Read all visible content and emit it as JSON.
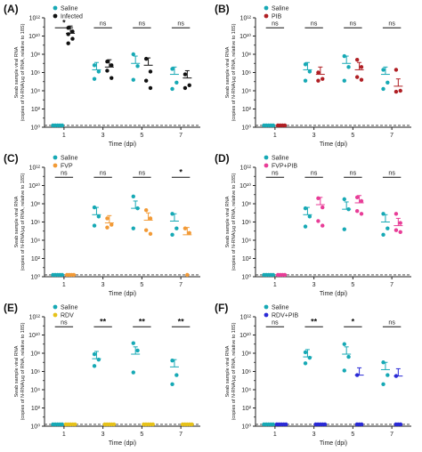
{
  "figure": {
    "colors": {
      "saline": "#17a9b5",
      "infected": "#111111",
      "pib": "#b01f24",
      "fvp": "#f29a36",
      "fvp_pib": "#e83d97",
      "rdv": "#e6c21a",
      "rdv_pib": "#2a2ad6",
      "axis": "#222222"
    }
  },
  "chart_data": [
    {
      "panel_label": "(A)",
      "type": "scatter",
      "x_categories": [
        "1",
        "3",
        "5",
        "7"
      ],
      "xlabel": "Time (dpi)",
      "ylabel_line1": "Swab sample viral RNA",
      "ylabel_line2": "(copies of N-RNA/µg of RNA, relative to 18S)",
      "y_scale": "log10",
      "y_ticks": [
        "10⁰",
        "10²",
        "10⁴",
        "10⁶",
        "10⁸",
        "10¹⁰",
        "10¹²"
      ],
      "ylim": [
        0,
        12
      ],
      "dashed_line_y": 0.2,
      "significance": [
        "*",
        "ns",
        "ns",
        "ns"
      ],
      "legend_position": "top-left",
      "series": [
        {
          "name": "Saline",
          "color_key": "saline",
          "points": [
            [
              0,
              0.2
            ],
            [
              0,
              0.2
            ],
            [
              0,
              0.2
            ],
            [
              0,
              0.2
            ],
            [
              0,
              0.2
            ],
            [
              1,
              6.8
            ],
            [
              1,
              6.1
            ],
            [
              1,
              5.3
            ],
            [
              2,
              8.0
            ],
            [
              2,
              6.7
            ],
            [
              2,
              5.2
            ],
            [
              3,
              6.4
            ],
            [
              3,
              4.9
            ],
            [
              3,
              4.2
            ]
          ],
          "means": [
            0.2,
            6.3,
            7.0,
            5.8
          ]
        },
        {
          "name": "Infected",
          "color_key": "infected",
          "points": [
            [
              0,
              10.9
            ],
            [
              0,
              10.5
            ],
            [
              0,
              10.2
            ],
            [
              0,
              9.7
            ],
            [
              0,
              9.2
            ],
            [
              1,
              7.2
            ],
            [
              1,
              6.8
            ],
            [
              1,
              6.2
            ],
            [
              1,
              5.4
            ],
            [
              2,
              7.5
            ],
            [
              2,
              6.1
            ],
            [
              2,
              5.1
            ],
            [
              2,
              4.3
            ],
            [
              3,
              5.8
            ],
            [
              3,
              4.6
            ],
            [
              3,
              4.3
            ]
          ],
          "means": [
            10.3,
            6.6,
            6.8,
            5.4
          ]
        }
      ]
    },
    {
      "panel_label": "(B)",
      "type": "scatter",
      "x_categories": [
        "1",
        "3",
        "5",
        "7"
      ],
      "xlabel": "Time (dpi)",
      "ylabel_line1": "Swab sample viral RNA",
      "ylabel_line2": "(copies of N-RNA/µg of RNA, relative to 18S)",
      "y_scale": "log10",
      "y_ticks": [
        "10⁰",
        "10²",
        "10⁴",
        "10⁶",
        "10⁸",
        "10¹⁰",
        "10¹²"
      ],
      "ylim": [
        0,
        12
      ],
      "dashed_line_y": 0.2,
      "significance": [
        "ns",
        "ns",
        "ns",
        "ns"
      ],
      "legend_position": "top-left",
      "series": [
        {
          "name": "Saline",
          "color_key": "saline",
          "points": [
            [
              0,
              0.2
            ],
            [
              0,
              0.2
            ],
            [
              0,
              0.2
            ],
            [
              0,
              0.2
            ],
            [
              0,
              0.2
            ],
            [
              1,
              6.9
            ],
            [
              1,
              6.1
            ],
            [
              1,
              5.1
            ],
            [
              2,
              7.8
            ],
            [
              2,
              6.6
            ],
            [
              2,
              5.1
            ],
            [
              3,
              6.3
            ],
            [
              3,
              4.9
            ],
            [
              3,
              4.2
            ]
          ],
          "means": [
            0.2,
            6.3,
            7.0,
            5.8
          ]
        },
        {
          "name": "PIB",
          "color_key": "pib",
          "points": [
            [
              0,
              0.2
            ],
            [
              0,
              0.2
            ],
            [
              0,
              0.2
            ],
            [
              0,
              0.2
            ],
            [
              1,
              6.0
            ],
            [
              1,
              5.3
            ],
            [
              1,
              5.1
            ],
            [
              2,
              7.4
            ],
            [
              2,
              6.6
            ],
            [
              2,
              5.5
            ],
            [
              2,
              5.2
            ],
            [
              3,
              6.3
            ],
            [
              3,
              4.0
            ],
            [
              3,
              3.9
            ]
          ],
          "means": [
            0.2,
            5.8,
            6.3,
            4.5
          ]
        }
      ]
    },
    {
      "panel_label": "(C)",
      "type": "scatter",
      "x_categories": [
        "1",
        "3",
        "5",
        "7"
      ],
      "xlabel": "Time (dpi)",
      "ylabel_line1": "Swab sample viral RNA",
      "ylabel_line2": "(copies of N-RNA/µg of RNA, relative to 18S)",
      "y_scale": "log10",
      "y_ticks": [
        "10⁰",
        "10²",
        "10⁴",
        "10⁶",
        "10⁸",
        "10¹⁰",
        "10¹²"
      ],
      "ylim": [
        0,
        12
      ],
      "dashed_line_y": 0.2,
      "significance": [
        "ns",
        "ns",
        "ns",
        "*"
      ],
      "legend_position": "top-left",
      "series": [
        {
          "name": "Saline",
          "color_key": "saline",
          "points": [
            [
              0,
              0.2
            ],
            [
              0,
              0.2
            ],
            [
              0,
              0.2
            ],
            [
              0,
              0.2
            ],
            [
              0,
              0.2
            ],
            [
              1,
              7.6
            ],
            [
              1,
              6.6
            ],
            [
              1,
              5.6
            ],
            [
              2,
              8.8
            ],
            [
              2,
              7.5
            ],
            [
              2,
              5.3
            ],
            [
              3,
              6.9
            ],
            [
              3,
              5.3
            ],
            [
              3,
              4.6
            ]
          ],
          "means": [
            0.2,
            6.8,
            7.5,
            6.1
          ]
        },
        {
          "name": "FVP",
          "color_key": "fvp",
          "points": [
            [
              0,
              0.2
            ],
            [
              0,
              0.2
            ],
            [
              0,
              0.2
            ],
            [
              0,
              0.2
            ],
            [
              1,
              6.4
            ],
            [
              1,
              5.7
            ],
            [
              1,
              5.4
            ],
            [
              2,
              7.3
            ],
            [
              2,
              6.4
            ],
            [
              2,
              5.1
            ],
            [
              2,
              4.7
            ],
            [
              3,
              5.3
            ],
            [
              3,
              4.8
            ],
            [
              3,
              0.2
            ]
          ],
          "means": [
            0.2,
            5.9,
            6.2,
            4.6
          ]
        }
      ]
    },
    {
      "panel_label": "(D)",
      "type": "scatter",
      "x_categories": [
        "1",
        "3",
        "5",
        "7"
      ],
      "xlabel": "Time (dpi)",
      "ylabel_line1": "Swab sample viral RNA",
      "ylabel_line2": "(copies of N-RNA/µg of RNA, relative to 18S)",
      "y_scale": "log10",
      "y_ticks": [
        "10⁰",
        "10²",
        "10⁴",
        "10⁶",
        "10⁸",
        "10¹⁰",
        "10¹²"
      ],
      "ylim": [
        0,
        12
      ],
      "dashed_line_y": 0.2,
      "significance": [
        "ns",
        "ns",
        "ns",
        "ns"
      ],
      "legend_position": "top-left",
      "series": [
        {
          "name": "Saline",
          "color_key": "saline",
          "points": [
            [
              0,
              0.2
            ],
            [
              0,
              0.2
            ],
            [
              0,
              0.2
            ],
            [
              0,
              0.2
            ],
            [
              0,
              0.2
            ],
            [
              1,
              7.5
            ],
            [
              1,
              6.6
            ],
            [
              1,
              5.5
            ],
            [
              2,
              8.5
            ],
            [
              2,
              7.4
            ],
            [
              2,
              5.2
            ],
            [
              3,
              6.9
            ],
            [
              3,
              5.3
            ],
            [
              3,
              4.6
            ]
          ],
          "means": [
            0.2,
            6.8,
            7.4,
            6.0
          ]
        },
        {
          "name": "FVP+PIB",
          "color_key": "fvp_pib",
          "points": [
            [
              0,
              0.2
            ],
            [
              0,
              0.2
            ],
            [
              0,
              0.2
            ],
            [
              0,
              0.2
            ],
            [
              1,
              8.6
            ],
            [
              1,
              7.6
            ],
            [
              1,
              6.1
            ],
            [
              1,
              5.6
            ],
            [
              2,
              8.7
            ],
            [
              2,
              8.3
            ],
            [
              2,
              7.2
            ],
            [
              2,
              6.9
            ],
            [
              3,
              6.9
            ],
            [
              3,
              5.9
            ],
            [
              3,
              5.1
            ],
            [
              3,
              4.9
            ]
          ],
          "means": [
            0.2,
            7.9,
            8.1,
            5.6
          ]
        }
      ]
    },
    {
      "panel_label": "(E)",
      "type": "scatter",
      "x_categories": [
        "1",
        "3",
        "5",
        "7"
      ],
      "xlabel": "Time (dpi)",
      "ylabel_line1": "Swab sample viral RNA",
      "ylabel_line2": "(copies of N-RNA/µg of RNA, relative to 18S)",
      "y_scale": "log10",
      "y_ticks": [
        "10⁰",
        "10²",
        "10⁴",
        "10⁶",
        "10⁸",
        "10¹⁰",
        "10¹²"
      ],
      "ylim": [
        0,
        12
      ],
      "dashed_line_y": 0.2,
      "significance": [
        "ns",
        "**",
        "**",
        "**"
      ],
      "legend_position": "top-left",
      "series": [
        {
          "name": "Saline",
          "color_key": "saline",
          "points": [
            [
              0,
              0.2
            ],
            [
              0,
              0.2
            ],
            [
              0,
              0.2
            ],
            [
              0,
              0.2
            ],
            [
              0,
              0.2
            ],
            [
              1,
              7.9
            ],
            [
              1,
              7.3
            ],
            [
              1,
              6.6
            ],
            [
              2,
              9.1
            ],
            [
              2,
              8.3
            ],
            [
              2,
              5.9
            ],
            [
              3,
              7.2
            ],
            [
              3,
              5.6
            ],
            [
              3,
              4.6
            ]
          ],
          "means": [
            0.2,
            7.4,
            7.9,
            6.5
          ]
        },
        {
          "name": "RDV",
          "color_key": "rdv",
          "points": [
            [
              0,
              0.2
            ],
            [
              0,
              0.2
            ],
            [
              0,
              0.2
            ],
            [
              0,
              0.2
            ],
            [
              0,
              0.2
            ],
            [
              1,
              0.2
            ],
            [
              1,
              0.2
            ],
            [
              1,
              0.2
            ],
            [
              1,
              0.2
            ],
            [
              1,
              0.2
            ],
            [
              2,
              0.2
            ],
            [
              2,
              0.2
            ],
            [
              2,
              0.2
            ],
            [
              2,
              0.2
            ],
            [
              2,
              0.2
            ],
            [
              3,
              0.2
            ],
            [
              3,
              0.2
            ],
            [
              3,
              0.2
            ],
            [
              3,
              0.2
            ],
            [
              3,
              0.2
            ]
          ],
          "means": [
            0.2,
            0.2,
            0.2,
            0.2
          ]
        }
      ]
    },
    {
      "panel_label": "(F)",
      "type": "scatter",
      "x_categories": [
        "1",
        "3",
        "5",
        "7"
      ],
      "xlabel": "Time (dpi)",
      "ylabel_line1": "Swab sample viral RNA",
      "ylabel_line2": "(copies of N-RNA/µg of RNA, relative to 18S)",
      "y_scale": "log10",
      "y_ticks": [
        "10⁰",
        "10²",
        "10⁴",
        "10⁶",
        "10⁸",
        "10¹⁰",
        "10¹²"
      ],
      "ylim": [
        0,
        12
      ],
      "dashed_line_y": 0.2,
      "significance": [
        "ns",
        "**",
        "*",
        "ns"
      ],
      "legend_position": "top-left",
      "series": [
        {
          "name": "Saline",
          "color_key": "saline",
          "points": [
            [
              0,
              0.2
            ],
            [
              0,
              0.2
            ],
            [
              0,
              0.2
            ],
            [
              0,
              0.2
            ],
            [
              0,
              0.2
            ],
            [
              1,
              8.1
            ],
            [
              1,
              7.5
            ],
            [
              1,
              6.9
            ],
            [
              2,
              9.0
            ],
            [
              2,
              7.6
            ],
            [
              2,
              6.1
            ],
            [
              3,
              7.0
            ],
            [
              3,
              5.6
            ],
            [
              3,
              4.6
            ]
          ],
          "means": [
            0.2,
            7.6,
            7.9,
            6.2
          ]
        },
        {
          "name": "RDV+PIB",
          "color_key": "rdv_pib",
          "points": [
            [
              0,
              0.2
            ],
            [
              0,
              0.2
            ],
            [
              0,
              0.2
            ],
            [
              0,
              0.2
            ],
            [
              0,
              0.2
            ],
            [
              1,
              0.2
            ],
            [
              1,
              0.2
            ],
            [
              1,
              0.2
            ],
            [
              1,
              0.2
            ],
            [
              1,
              0.2
            ],
            [
              2,
              5.6
            ],
            [
              2,
              0.2
            ],
            [
              2,
              0.2
            ],
            [
              2,
              0.2
            ],
            [
              3,
              5.5
            ],
            [
              3,
              0.2
            ],
            [
              3,
              0.2
            ],
            [
              3,
              0.2
            ]
          ],
          "means": [
            0.2,
            0.2,
            5.6,
            5.5
          ]
        }
      ]
    }
  ]
}
